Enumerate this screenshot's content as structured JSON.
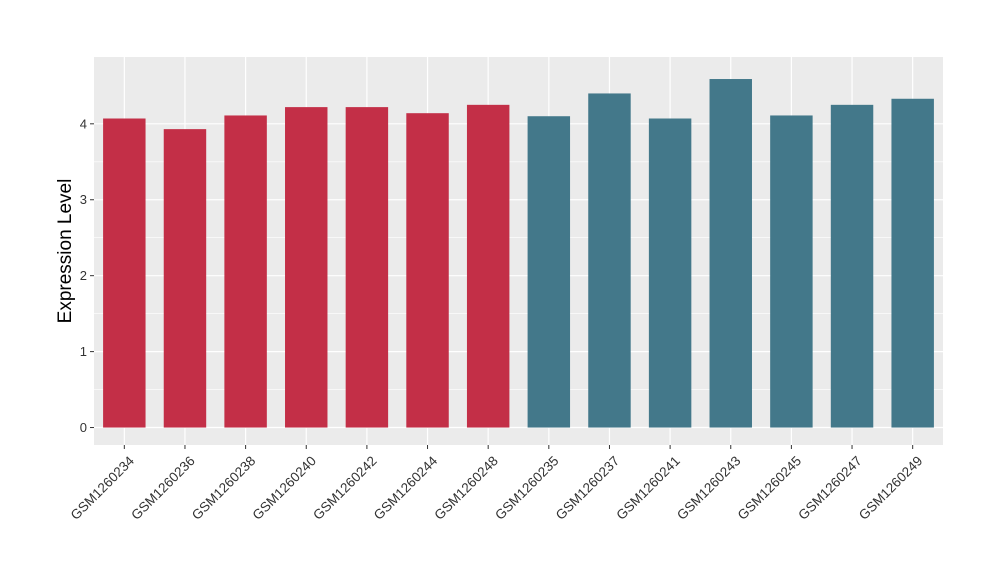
{
  "chart_data": {
    "type": "bar",
    "title": "",
    "xlabel": "",
    "ylabel": "Expression Level",
    "ylim": [
      -0.23,
      4.88
    ],
    "yticks": [
      0,
      1,
      2,
      3,
      4
    ],
    "grid": true,
    "legend": "none",
    "background_color": "#EBEBEB",
    "grid_color": "#FFFFFF",
    "categories": [
      "GSM1260234",
      "GSM1260236",
      "GSM1260238",
      "GSM1260240",
      "GSM1260242",
      "GSM1260244",
      "GSM1260248",
      "GSM1260235",
      "GSM1260237",
      "GSM1260241",
      "GSM1260243",
      "GSM1260245",
      "GSM1260247",
      "GSM1260249"
    ],
    "values": [
      4.07,
      3.93,
      4.11,
      4.22,
      4.22,
      4.14,
      4.25,
      4.1,
      4.4,
      4.07,
      4.59,
      4.11,
      4.25,
      4.33
    ],
    "bar_colors": [
      "#C32F47",
      "#C32F47",
      "#C32F47",
      "#C32F47",
      "#C32F47",
      "#C32F47",
      "#C32F47",
      "#43788A",
      "#43788A",
      "#43788A",
      "#43788A",
      "#43788A",
      "#43788A",
      "#43788A"
    ]
  }
}
